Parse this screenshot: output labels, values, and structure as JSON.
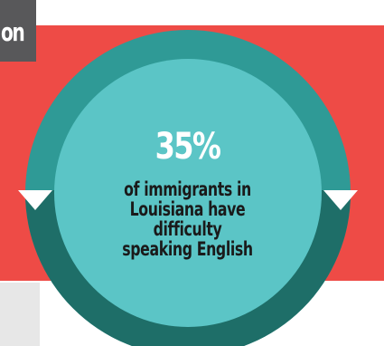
{
  "header": {
    "title": "on"
  },
  "stat": {
    "value": "35%",
    "label": "of immigrants in Louisiana have difficulty speaking English"
  },
  "colors": {
    "band": "#ee4b46",
    "header_box": "#58585a",
    "ring_outer": "#2f9a96",
    "ring_lower": "#1e6e68",
    "inner_circle": "#5bc5c6",
    "text_value": "#ffffff",
    "text_label": "#1a1a1a",
    "grey_block": "#e7e7e7"
  }
}
